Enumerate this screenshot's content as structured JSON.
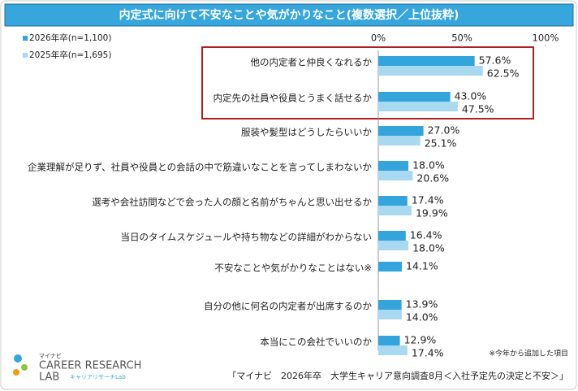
{
  "chart_data": {
    "type": "bar",
    "orientation": "horizontal",
    "title": "内定式に向けて不安なことや気がかりなこと(複数選択／上位抜粋)",
    "categories": [
      "他の内定者と仲良くなれるか",
      "内定先の社員や役員とうまく話せるか",
      "服装や髪型はどうしたらいいか",
      "企業理解が足りず、社員や役員との会話の中で筋違いなことを言ってしまわないか",
      "選考や会社訪問などで会った人の顔と名前がちゃんと思い出せるか",
      "当日のタイムスケジュールや持ち物などの詳細がわからない",
      "不安なことや気がかりなことはない※",
      "自分の他に何名の内定者が出席するのか",
      "本当にこの会社でいいのか"
    ],
    "series": [
      {
        "name": "2026年卒(n=1,100)",
        "color": "#34a4dc",
        "values": [
          57.6,
          43.0,
          27.0,
          18.0,
          17.4,
          16.4,
          14.1,
          13.9,
          12.9
        ],
        "value_labels": [
          "57.6%",
          "43.0%",
          "27.0%",
          "18.0%",
          "17.4%",
          "16.4%",
          "14.1%",
          "13.9%",
          "12.9%"
        ]
      },
      {
        "name": "2025年卒(n=1,695)",
        "color": "#a9d9f0",
        "values": [
          62.5,
          47.5,
          25.1,
          20.6,
          19.9,
          18.0,
          null,
          14.0,
          17.4
        ],
        "value_labels": [
          "62.5%",
          "47.5%",
          "25.1%",
          "20.6%",
          "19.9%",
          "18.0%",
          null,
          "14.0%",
          "17.4%"
        ]
      }
    ],
    "xlim": [
      0,
      100
    ],
    "xticks": [
      {
        "value": 0,
        "label": "0%"
      },
      {
        "value": 50,
        "label": "50%"
      },
      {
        "value": 100,
        "label": "100%"
      }
    ],
    "grid": false,
    "legend": "top-left",
    "note": "※今年から追加した項目",
    "source": "「マイナビ　2026年卒　大学生キャリア意向調査8月＜入社予定先の決定と不安＞」"
  },
  "logo": {
    "brand": "マイナビ",
    "line1": "CAREER RESEARCH",
    "line2": "LAB",
    "sub": "キャリアリサーチLab"
  }
}
